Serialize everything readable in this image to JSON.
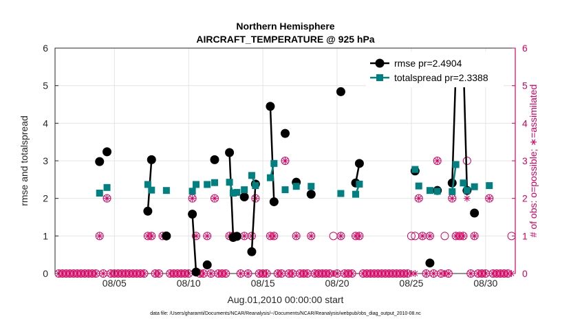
{
  "chart_data": {
    "type": "line",
    "title": "Northern Hemisphere",
    "subtitle": "AIRCRAFT_TEMPERATURE @ 925 hPa",
    "xlabel": "Aug.01,2010 00:00:00 start",
    "ylabel_left": "rmse and totalspread",
    "ylabel_right": "# of obs: o=possible; ∗=assimilated",
    "footnote": "data file: /Users/gharamti/Documents/NCAR/Reanalysis/~/Documents/NCAR/Reanalysis/webpub/obs_diag_output_2010-08.nc",
    "xlim": [
      1.0,
      32.0
    ],
    "ylim": [
      0,
      6
    ],
    "ylim_right": [
      0,
      6
    ],
    "xticks": [
      5,
      10,
      15,
      20,
      25,
      30
    ],
    "xtick_labels": [
      "08/05",
      "08/10",
      "08/15",
      "08/20",
      "08/25",
      "08/30"
    ],
    "yticks": [
      0,
      1,
      2,
      3,
      4,
      5,
      6
    ],
    "ytick_labels": [
      "0",
      "1",
      "2",
      "3",
      "4",
      "5",
      "6"
    ],
    "grid": true,
    "legend_position": "top-right",
    "colors": {
      "rmse": "#000000",
      "totalspread": "#008080",
      "obs": "#d6005f",
      "grid": "#e4e4e4",
      "axis": "#262626"
    },
    "series": [
      {
        "name": "rmse pr=2.4904",
        "marker": "circle",
        "segments": [
          [
            [
              4.0,
              2.98
            ]
          ],
          [
            [
              4.5,
              3.24
            ]
          ],
          [
            [
              7.25,
              1.66
            ],
            [
              7.5,
              3.03
            ]
          ],
          [
            [
              8.5,
              1.0
            ]
          ],
          [
            [
              10.25,
              1.58
            ],
            [
              10.5,
              0.04
            ]
          ],
          [
            [
              11.25,
              0.23
            ]
          ],
          [
            [
              11.75,
              3.03
            ]
          ],
          [
            [
              12.75,
              3.22
            ],
            [
              13.0,
              0.96
            ],
            [
              13.25,
              0.99
            ]
          ],
          [
            [
              13.75,
              2.04
            ]
          ],
          [
            [
              14.25,
              0.58
            ],
            [
              14.5,
              2.38
            ]
          ],
          [
            [
              15.5,
              4.45
            ],
            [
              15.75,
              1.91
            ]
          ],
          [
            [
              16.5,
              3.73
            ]
          ],
          [
            [
              17.25,
              2.43
            ]
          ],
          [
            [
              18.25,
              2.11
            ]
          ],
          [
            [
              20.25,
              4.84
            ]
          ],
          [
            [
              21.25,
              2.41
            ],
            [
              21.5,
              2.93
            ]
          ],
          [
            [
              25.25,
              2.73
            ]
          ],
          [
            [
              26.25,
              0.28
            ]
          ],
          [
            [
              26.75,
              2.21
            ]
          ],
          [
            [
              27.75,
              2.41
            ],
            [
              28.0,
              5.45
            ]
          ],
          [
            [
              28.5,
              5.71
            ],
            [
              28.75,
              2.21
            ]
          ],
          [
            [
              29.25,
              1.61
            ]
          ],
          [
            [
              30.25,
              5.09
            ]
          ]
        ]
      },
      {
        "name": "totalspread pr=2.3388",
        "marker": "square",
        "segments": [
          [
            [
              4.0,
              2.14
            ]
          ],
          [
            [
              4.5,
              2.29
            ]
          ],
          [
            [
              7.25,
              2.37
            ],
            [
              7.5,
              2.22
            ]
          ],
          [
            [
              8.5,
              2.21
            ]
          ],
          [
            [
              10.25,
              2.19
            ],
            [
              10.5,
              2.37
            ]
          ],
          [
            [
              11.25,
              2.37
            ]
          ],
          [
            [
              11.75,
              2.42
            ]
          ],
          [
            [
              12.75,
              2.43
            ],
            [
              13.0,
              2.14
            ],
            [
              13.25,
              2.16
            ]
          ],
          [
            [
              13.75,
              2.23
            ]
          ],
          [
            [
              14.25,
              2.61
            ],
            [
              14.5,
              2.34
            ]
          ],
          [
            [
              15.5,
              2.55
            ],
            [
              15.75,
              2.93
            ]
          ],
          [
            [
              16.5,
              2.23
            ]
          ],
          [
            [
              17.25,
              2.32
            ]
          ],
          [
            [
              18.25,
              2.32
            ]
          ],
          [
            [
              20.25,
              2.13
            ]
          ],
          [
            [
              21.25,
              2.11
            ],
            [
              21.5,
              2.38
            ]
          ],
          [
            [
              25.25,
              2.77
            ]
          ],
          [
            [
              25.5,
              2.33
            ]
          ],
          [
            [
              26.25,
              2.21
            ]
          ],
          [
            [
              26.75,
              2.19
            ]
          ],
          [
            [
              27.75,
              2.18
            ],
            [
              28.0,
              2.9
            ]
          ],
          [
            [
              28.5,
              2.41
            ],
            [
              28.75,
              2.21
            ]
          ],
          [
            [
              29.25,
              2.31
            ]
          ],
          [
            [
              30.25,
              2.34
            ]
          ]
        ]
      }
    ],
    "obs_counts": {
      "name": "# of obs",
      "nonzero": [
        {
          "x": 4.0,
          "possible": 1,
          "assimilated": 1
        },
        {
          "x": 4.5,
          "possible": 2,
          "assimilated": 2
        },
        {
          "x": 7.25,
          "possible": 1,
          "assimilated": 1
        },
        {
          "x": 7.5,
          "possible": 1,
          "assimilated": 1
        },
        {
          "x": 8.25,
          "possible": 1,
          "assimilated": 1
        },
        {
          "x": 8.5,
          "possible": 1,
          "assimilated": 1
        },
        {
          "x": 10.25,
          "possible": 2,
          "assimilated": 2
        },
        {
          "x": 10.5,
          "possible": 1,
          "assimilated": 1
        },
        {
          "x": 11.25,
          "possible": 1,
          "assimilated": 1
        },
        {
          "x": 11.75,
          "possible": 2,
          "assimilated": 2
        },
        {
          "x": 12.75,
          "possible": 1,
          "assimilated": 1
        },
        {
          "x": 13.0,
          "possible": 1,
          "assimilated": 1
        },
        {
          "x": 13.25,
          "possible": 1,
          "assimilated": 1
        },
        {
          "x": 13.75,
          "possible": 1,
          "assimilated": 1
        },
        {
          "x": 14.25,
          "possible": 1,
          "assimilated": 1
        },
        {
          "x": 14.5,
          "possible": 2,
          "assimilated": 2
        },
        {
          "x": 15.5,
          "possible": 1,
          "assimilated": 1
        },
        {
          "x": 15.75,
          "possible": 1,
          "assimilated": 1
        },
        {
          "x": 16.5,
          "possible": 3,
          "assimilated": 3
        },
        {
          "x": 17.25,
          "possible": 1,
          "assimilated": 1
        },
        {
          "x": 18.25,
          "possible": 1,
          "assimilated": 1
        },
        {
          "x": 19.75,
          "possible": 1,
          "assimilated": 0
        },
        {
          "x": 20.25,
          "possible": 1,
          "assimilated": 1
        },
        {
          "x": 21.25,
          "possible": 1,
          "assimilated": 1
        },
        {
          "x": 21.5,
          "possible": 1,
          "assimilated": 1
        },
        {
          "x": 25.0,
          "possible": 1,
          "assimilated": 0
        },
        {
          "x": 25.25,
          "possible": 1,
          "assimilated": 0
        },
        {
          "x": 25.5,
          "possible": 2,
          "assimilated": 2
        },
        {
          "x": 25.75,
          "possible": 1,
          "assimilated": 1
        },
        {
          "x": 26.25,
          "possible": 1,
          "assimilated": 1
        },
        {
          "x": 26.75,
          "possible": 3,
          "assimilated": 3
        },
        {
          "x": 27.25,
          "possible": 1,
          "assimilated": 0
        },
        {
          "x": 27.75,
          "possible": 2,
          "assimilated": 2
        },
        {
          "x": 28.0,
          "possible": 1,
          "assimilated": 1
        },
        {
          "x": 28.25,
          "possible": 1,
          "assimilated": 1
        },
        {
          "x": 28.5,
          "possible": 1,
          "assimilated": 1
        },
        {
          "x": 28.75,
          "possible": 3,
          "assimilated": 2
        },
        {
          "x": 29.25,
          "possible": 1,
          "assimilated": 1
        },
        {
          "x": 30.25,
          "possible": 2,
          "assimilated": 2
        },
        {
          "x": 31.75,
          "possible": 1,
          "assimilated": 0
        }
      ],
      "zero_x_all_other_6_hourly_times": true
    }
  }
}
